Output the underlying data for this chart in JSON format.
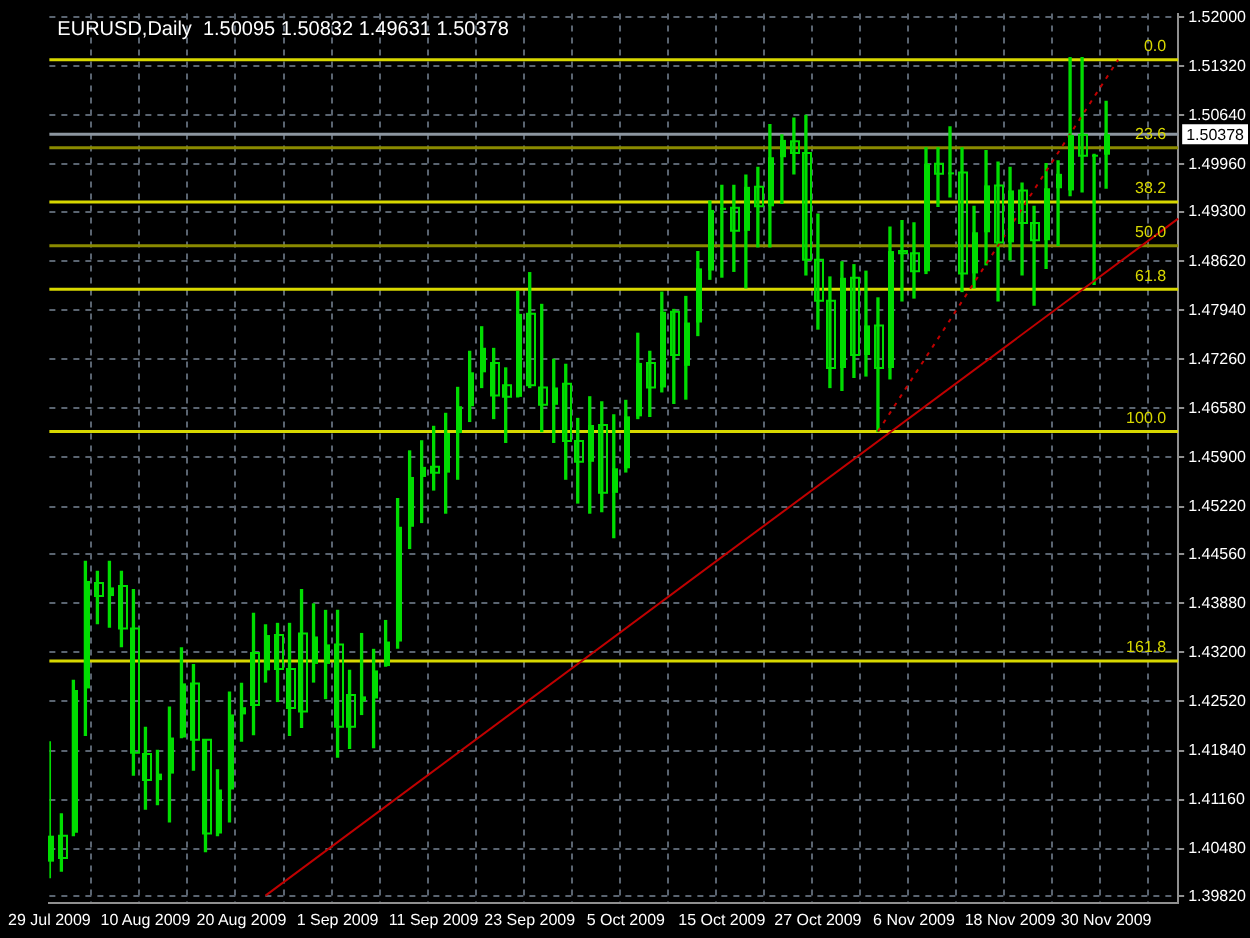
{
  "chart_data": {
    "type": "candlestick",
    "title": "EURUSD,Daily  1.50095 1.50832 1.49631 1.50378",
    "categories": [
      "29 Jul 2009",
      null,
      null,
      null,
      null,
      null,
      null,
      null,
      "10 Aug 2009",
      null,
      null,
      null,
      null,
      null,
      null,
      null,
      "20 Aug 2009",
      null,
      null,
      null,
      null,
      null,
      null,
      null,
      "1 Sep 2009",
      null,
      null,
      null,
      null,
      null,
      null,
      null,
      "11 Sep 2009",
      null,
      null,
      null,
      null,
      null,
      null,
      null,
      "23 Sep 2009",
      null,
      null,
      null,
      null,
      null,
      null,
      null,
      "5 Oct 2009",
      null,
      null,
      null,
      null,
      null,
      null,
      null,
      "15 Oct 2009",
      null,
      null,
      null,
      null,
      null,
      null,
      null,
      "27 Oct 2009",
      null,
      null,
      null,
      null,
      null,
      null,
      null,
      "6 Nov 2009",
      null,
      null,
      null,
      null,
      null,
      null,
      null,
      "18 Nov 2009",
      null,
      null,
      null,
      null,
      null,
      null,
      null,
      "30 Nov 2009",
      null,
      null,
      null,
      null,
      null,
      null
    ],
    "color": "#00dd00",
    "ohlc": [
      [
        1.403,
        1.4196,
        1.4008,
        1.4066
      ],
      [
        1.4066,
        1.4096,
        1.4017,
        1.4035
      ],
      [
        1.407,
        1.4281,
        1.4066,
        1.4268
      ],
      [
        1.427,
        1.4446,
        1.4205,
        1.4419
      ],
      [
        1.4416,
        1.4432,
        1.436,
        1.4398
      ],
      [
        1.4398,
        1.4446,
        1.4355,
        1.441
      ],
      [
        1.4412,
        1.4432,
        1.4328,
        1.4353
      ],
      [
        1.4353,
        1.4407,
        1.415,
        1.4181
      ],
      [
        1.4179,
        1.4216,
        1.4103,
        1.4143
      ],
      [
        1.4143,
        1.4184,
        1.4109,
        1.4152
      ],
      [
        1.4152,
        1.4244,
        1.4085,
        1.4202
      ],
      [
        1.4202,
        1.4326,
        1.4202,
        1.4277
      ],
      [
        1.4277,
        1.4303,
        1.4157,
        1.4199
      ],
      [
        1.4199,
        1.4199,
        1.4044,
        1.4069
      ],
      [
        1.4069,
        1.4157,
        1.4066,
        1.413
      ],
      [
        1.413,
        1.4265,
        1.4085,
        1.4234
      ],
      [
        1.4234,
        1.4277,
        1.4197,
        1.4244
      ],
      [
        1.4319,
        1.4374,
        1.4206,
        1.4247
      ],
      [
        1.4295,
        1.4358,
        1.4279,
        1.4344
      ],
      [
        1.4344,
        1.436,
        1.4252,
        1.4297
      ],
      [
        1.4297,
        1.436,
        1.4205,
        1.4243
      ],
      [
        1.4346,
        1.4407,
        1.4216,
        1.4238
      ],
      [
        1.4304,
        1.4387,
        1.4279,
        1.4342
      ],
      [
        1.4304,
        1.4378,
        1.4256,
        1.4331
      ],
      [
        1.4331,
        1.4378,
        1.4175,
        1.4217
      ],
      [
        1.4261,
        1.4295,
        1.4187,
        1.4217
      ],
      [
        1.4252,
        1.4346,
        1.4234,
        1.4259
      ],
      [
        1.4256,
        1.4324,
        1.4188,
        1.4295
      ],
      [
        1.4301,
        1.4364,
        1.4301,
        1.4335
      ],
      [
        1.4335,
        1.4533,
        1.4326,
        1.4494
      ],
      [
        1.4494,
        1.4599,
        1.4464,
        1.4563
      ],
      [
        1.4563,
        1.4613,
        1.45,
        1.4577
      ],
      [
        1.4577,
        1.4633,
        1.4545,
        1.4569
      ],
      [
        1.4569,
        1.4651,
        1.4513,
        1.4624
      ],
      [
        1.4624,
        1.4687,
        1.456,
        1.4661
      ],
      [
        1.4661,
        1.4737,
        1.464,
        1.4708
      ],
      [
        1.4708,
        1.4771,
        1.4687,
        1.4742
      ],
      [
        1.4721,
        1.4741,
        1.4644,
        1.4676
      ],
      [
        1.469,
        1.4714,
        1.4611,
        1.4674
      ],
      [
        1.4674,
        1.482,
        1.4674,
        1.4789
      ],
      [
        1.4789,
        1.4846,
        1.4687,
        1.469
      ],
      [
        1.4687,
        1.4802,
        1.4626,
        1.4663
      ],
      [
        1.4663,
        1.4726,
        1.4611,
        1.4687
      ],
      [
        1.4692,
        1.4719,
        1.456,
        1.4613
      ],
      [
        1.4613,
        1.4644,
        1.4527,
        1.4584
      ],
      [
        1.4584,
        1.4674,
        1.4513,
        1.4635
      ],
      [
        1.4635,
        1.4667,
        1.4515,
        1.4541
      ],
      [
        1.4541,
        1.4649,
        1.4479,
        1.4575
      ],
      [
        1.4575,
        1.4669,
        1.457,
        1.4647
      ],
      [
        1.4647,
        1.4762,
        1.4644,
        1.4721
      ],
      [
        1.4721,
        1.4737,
        1.4647,
        1.4687
      ],
      [
        1.4687,
        1.4819,
        1.4681,
        1.4792
      ],
      [
        1.4792,
        1.4795,
        1.4665,
        1.4732
      ],
      [
        1.4717,
        1.4813,
        1.4671,
        1.4777
      ],
      [
        1.4777,
        1.4875,
        1.4759,
        1.4852
      ],
      [
        1.4849,
        1.4945,
        1.4837,
        1.4933
      ],
      [
        1.4933,
        1.4967,
        1.484,
        1.4936
      ],
      [
        1.4936,
        1.4967,
        1.4848,
        1.4904
      ],
      [
        1.4904,
        1.4981,
        1.4825,
        1.4965
      ],
      [
        1.4965,
        1.4992,
        1.4882,
        1.4938
      ],
      [
        1.4938,
        1.5051,
        1.4882,
        1.5006
      ],
      [
        1.5006,
        1.5037,
        1.4942,
        1.503
      ],
      [
        1.5028,
        1.506,
        1.4983,
        1.5012
      ],
      [
        1.5012,
        1.5064,
        1.4843,
        1.4864
      ],
      [
        1.4864,
        1.4927,
        1.4768,
        1.4807
      ],
      [
        1.4807,
        1.484,
        1.4687,
        1.4714
      ],
      [
        1.4714,
        1.4861,
        1.4683,
        1.4839
      ],
      [
        1.4839,
        1.4857,
        1.4701,
        1.4732
      ],
      [
        1.4732,
        1.4848,
        1.4703,
        1.4773
      ],
      [
        1.4773,
        1.4811,
        1.4626,
        1.4714
      ],
      [
        1.4714,
        1.4909,
        1.4699,
        1.4876
      ],
      [
        1.4876,
        1.4918,
        1.4807,
        1.4873
      ],
      [
        1.4873,
        1.4915,
        1.4811,
        1.4848
      ],
      [
        1.4848,
        1.5019,
        1.4845,
        1.4997
      ],
      [
        1.4997,
        1.5019,
        1.4938,
        1.4983
      ],
      [
        1.4983,
        1.5048,
        1.4951,
        1.4985
      ],
      [
        1.4985,
        1.5019,
        1.482,
        1.4845
      ],
      [
        1.4845,
        1.4938,
        1.4825,
        1.4902
      ],
      [
        1.4902,
        1.5015,
        1.4857,
        1.4967
      ],
      [
        1.4967,
        1.4999,
        1.4807,
        1.4888
      ],
      [
        1.4888,
        1.4992,
        1.4864,
        1.496
      ],
      [
        1.496,
        1.497,
        1.4843,
        1.4915
      ],
      [
        1.4915,
        1.4938,
        1.4801,
        1.4891
      ],
      [
        1.4891,
        1.4997,
        1.4852,
        1.4963
      ],
      [
        1.4963,
        1.5001,
        1.4884,
        1.4983
      ],
      [
        1.496,
        1.5144,
        1.4953,
        1.5037
      ],
      [
        1.5037,
        1.5144,
        1.4958,
        1.5008
      ],
      [
        1.5008,
        1.501,
        1.483,
        1.50095
      ],
      [
        1.50095,
        1.50832,
        1.49631,
        1.50378
      ],
      null,
      null,
      null,
      null,
      null,
      null
    ],
    "series": [
      {
        "type": "line",
        "color": "#c00000",
        "values": [
          null,
          null,
          null,
          null,
          null,
          null,
          null,
          null,
          null,
          null,
          null,
          null,
          null,
          null,
          null,
          null,
          null,
          null,
          1.3983,
          null,
          null,
          null,
          null,
          null,
          null,
          null,
          null,
          null,
          null,
          null,
          null,
          null,
          null,
          null,
          null,
          null,
          null,
          null,
          null,
          null,
          null,
          null,
          null,
          null,
          null,
          null,
          null,
          null,
          null,
          null,
          null,
          null,
          null,
          null,
          null,
          null,
          null,
          null,
          null,
          null,
          null,
          null,
          null,
          null,
          null,
          null,
          null,
          null,
          null,
          null,
          null,
          null,
          null,
          null,
          null,
          null,
          null,
          null,
          null,
          null,
          null,
          null,
          null,
          null,
          null,
          null,
          null,
          null,
          null,
          null,
          null,
          null,
          null,
          null,
          1.4921
        ]
      },
      {
        "type": "line",
        "color": "#c00000",
        "line_style": "dotted",
        "values": [
          null,
          null,
          null,
          null,
          null,
          null,
          null,
          null,
          null,
          null,
          null,
          null,
          null,
          null,
          null,
          null,
          null,
          null,
          null,
          null,
          null,
          null,
          null,
          null,
          null,
          null,
          null,
          null,
          null,
          null,
          null,
          null,
          null,
          null,
          null,
          null,
          null,
          null,
          null,
          null,
          null,
          null,
          null,
          null,
          null,
          null,
          null,
          null,
          null,
          null,
          null,
          null,
          null,
          null,
          null,
          null,
          null,
          null,
          null,
          null,
          null,
          null,
          null,
          null,
          null,
          null,
          null,
          null,
          null,
          1.4626,
          null,
          null,
          null,
          null,
          null,
          null,
          null,
          null,
          null,
          null,
          null,
          null,
          null,
          null,
          null,
          null,
          null,
          null,
          null,
          1.5141,
          null,
          null,
          null,
          null,
          null
        ]
      }
    ],
    "ylim": [
      1.3973,
      1.5205
    ],
    "yticks": [
      {
        "value": 1.52,
        "label": "1.52000"
      },
      {
        "value": 1.5132,
        "label": "1.51320"
      },
      {
        "value": 1.5064,
        "label": "1.50640"
      },
      {
        "value": 1.4996,
        "label": "1.49960"
      },
      {
        "value": 1.493,
        "label": "1.49300"
      },
      {
        "value": 1.4862,
        "label": "1.48620"
      },
      {
        "value": 1.4794,
        "label": "1.47940"
      },
      {
        "value": 1.4726,
        "label": "1.47260"
      },
      {
        "value": 1.4658,
        "label": "1.46580"
      },
      {
        "value": 1.459,
        "label": "1.45900"
      },
      {
        "value": 1.4522,
        "label": "1.45220"
      },
      {
        "value": 1.4456,
        "label": "1.44560"
      },
      {
        "value": 1.4388,
        "label": "1.43880"
      },
      {
        "value": 1.432,
        "label": "1.43200"
      },
      {
        "value": 1.4252,
        "label": "1.42520"
      },
      {
        "value": 1.4184,
        "label": "1.41840"
      },
      {
        "value": 1.4116,
        "label": "1.41160"
      },
      {
        "value": 1.4048,
        "label": "1.40480"
      },
      {
        "value": 1.3982,
        "label": "1.39820"
      }
    ],
    "ref_lines": [
      {
        "axis": "y",
        "value": 1.5141,
        "color": "#d8d800"
      },
      {
        "axis": "y",
        "value": 1.5019,
        "color": "#8a8a00"
      },
      {
        "axis": "y",
        "value": 1.4944,
        "color": "#d8d800"
      },
      {
        "axis": "y",
        "value": 1.48835,
        "color": "#8a8a00"
      },
      {
        "axis": "y",
        "value": 1.4823,
        "color": "#d8d800"
      },
      {
        "axis": "y",
        "value": 1.4626,
        "color": "#d8d800"
      },
      {
        "axis": "y",
        "value": 1.4308,
        "color": "#d8d800"
      },
      {
        "axis": "y",
        "value": 1.50378,
        "label": "1.50378",
        "color": "#8c96a0"
      }
    ],
    "annotations": [
      {
        "text": "0.0",
        "y": 1.5141
      },
      {
        "text": "23.6",
        "y": 1.5019
      },
      {
        "text": "38.2",
        "y": 1.4944
      },
      {
        "text": "50.0",
        "y": 1.48835
      },
      {
        "text": "61.8",
        "y": 1.4823
      },
      {
        "text": "100.0",
        "y": 1.4626
      },
      {
        "text": "161.8",
        "y": 1.4308
      }
    ],
    "grid": true,
    "legend": false
  }
}
